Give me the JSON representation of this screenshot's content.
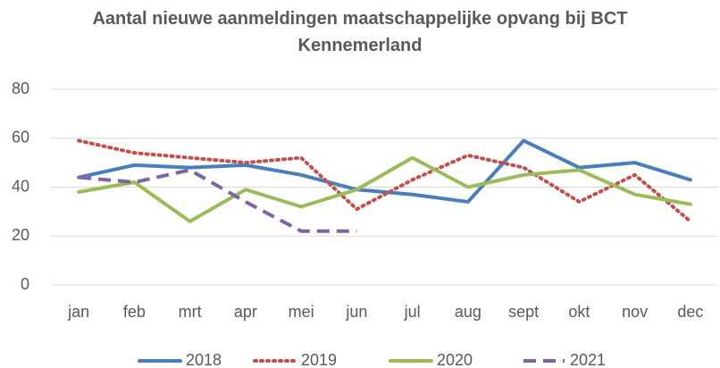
{
  "chart_data": {
    "type": "line",
    "title": "Aantal nieuwe aanmeldingen maatschappelijke opvang bij BCT Kennemerland",
    "categories": [
      "jan",
      "feb",
      "mrt",
      "apr",
      "mei",
      "jun",
      "jul",
      "aug",
      "sept",
      "okt",
      "nov",
      "dec"
    ],
    "series": [
      {
        "name": "2018",
        "color": "#4a7ebb",
        "dash": "solid",
        "values": [
          44,
          49,
          48,
          49,
          45,
          39,
          37,
          34,
          59,
          48,
          50,
          43
        ]
      },
      {
        "name": "2019",
        "color": "#c0504d",
        "dash": "dot",
        "values": [
          59,
          54,
          52,
          50,
          52,
          31,
          43,
          53,
          48,
          34,
          45,
          26
        ]
      },
      {
        "name": "2020",
        "color": "#9bbb59",
        "dash": "solid",
        "values": [
          38,
          42,
          26,
          39,
          32,
          39,
          52,
          40,
          45,
          47,
          37,
          33
        ]
      },
      {
        "name": "2021",
        "color": "#8064a2",
        "dash": "dash",
        "values": [
          44,
          42,
          47,
          34,
          22,
          22,
          null,
          null,
          null,
          null,
          null,
          null
        ]
      }
    ],
    "ylim": [
      0,
      80
    ],
    "yticks": [
      0,
      20,
      40,
      60,
      80
    ],
    "grid": true,
    "legend": "bottom"
  }
}
